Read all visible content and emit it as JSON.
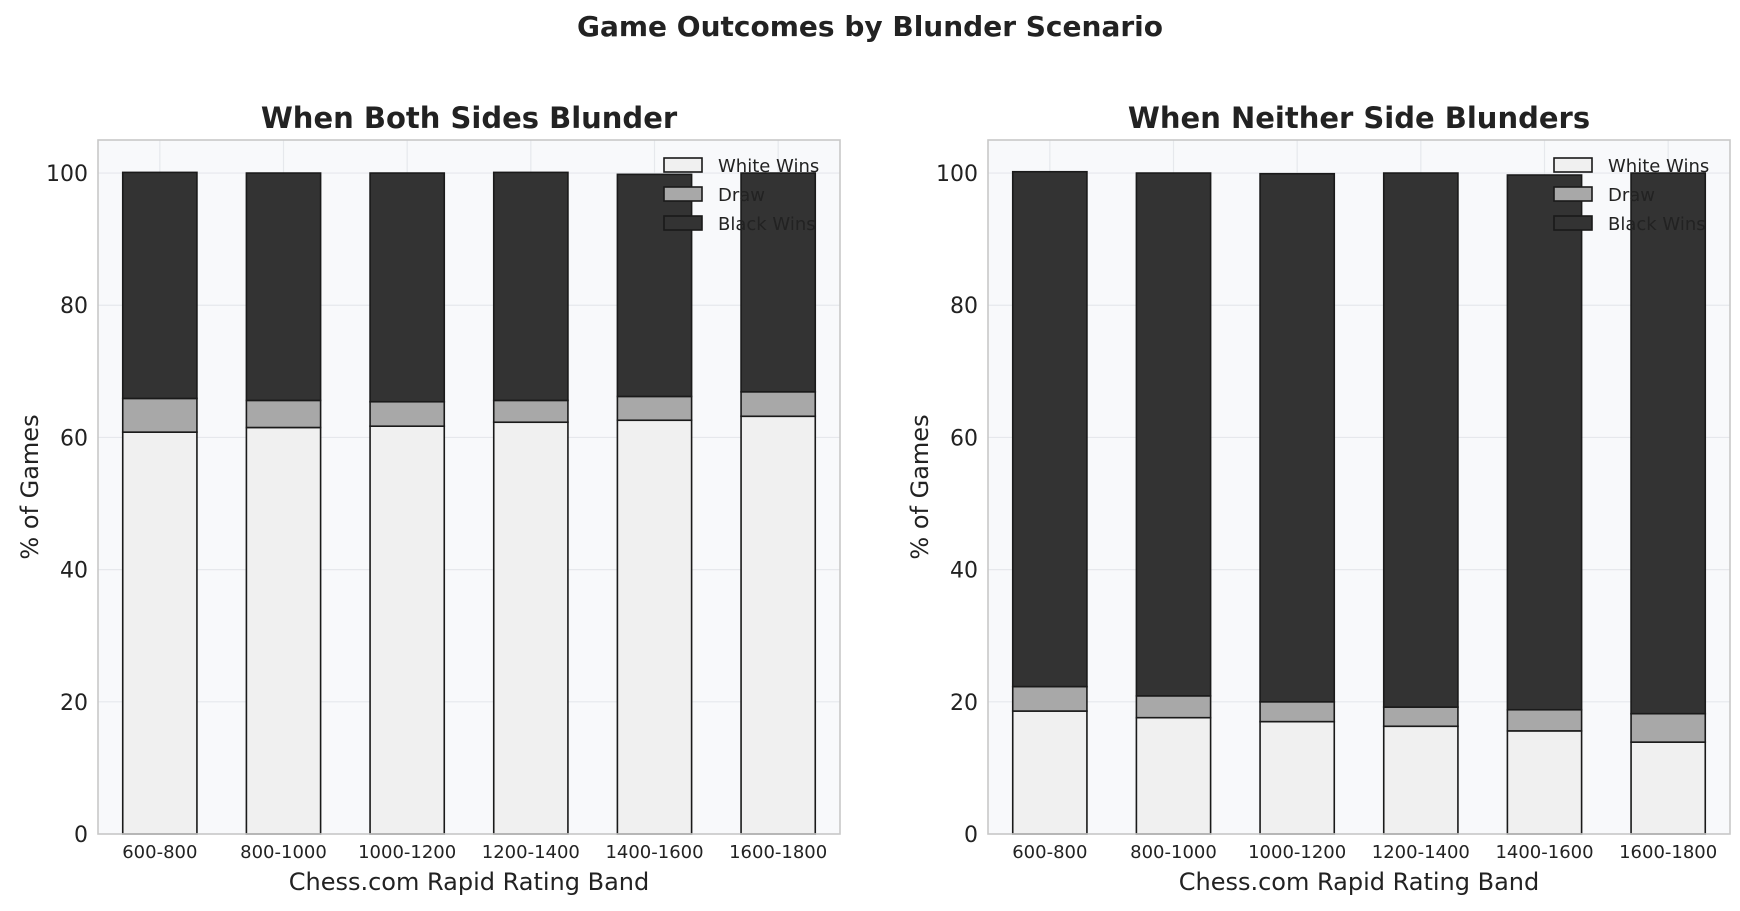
{
  "suptitle": "Game Outcomes by Blunder Scenario",
  "colors": {
    "white_wins": "#f0f0f0",
    "draw": "#a8a8a8",
    "black_wins": "#333333",
    "bar_edge": "#1a1a1a",
    "plot_bg": "#f8f9fb",
    "grid": "#e6e8ec",
    "frame": "#c8c8c8"
  },
  "chart_data": [
    {
      "type": "bar",
      "stacked": true,
      "title": "When Both Sides Blunder",
      "xlabel": "Chess.com Rapid Rating Band",
      "ylabel": "% of Games",
      "ylim": [
        0,
        105
      ],
      "yticks": [
        0,
        20,
        40,
        60,
        80,
        100
      ],
      "grid": true,
      "legend_position": "top-right",
      "categories": [
        "600-800",
        "800-1000",
        "1000-1200",
        "1200-1400",
        "1400-1600",
        "1600-1800"
      ],
      "series": [
        {
          "name": "White Wins",
          "color_key": "white_wins",
          "values": [
            60.8,
            61.5,
            61.7,
            62.3,
            62.6,
            63.2
          ]
        },
        {
          "name": "Draw",
          "color_key": "draw",
          "values": [
            5.1,
            4.1,
            3.7,
            3.3,
            3.6,
            3.7
          ]
        },
        {
          "name": "Black Wins",
          "color_key": "black_wins",
          "values": [
            34.2,
            34.4,
            34.6,
            34.5,
            33.6,
            33.1
          ]
        }
      ]
    },
    {
      "type": "bar",
      "stacked": true,
      "title": "When Neither Side Blunders",
      "xlabel": "Chess.com Rapid Rating Band",
      "ylabel": "% of Games",
      "ylim": [
        0,
        105
      ],
      "yticks": [
        0,
        20,
        40,
        60,
        80,
        100
      ],
      "grid": true,
      "legend_position": "top-right",
      "categories": [
        "600-800",
        "800-1000",
        "1000-1200",
        "1200-1400",
        "1400-1600",
        "1600-1800"
      ],
      "series": [
        {
          "name": "White Wins",
          "color_key": "white_wins",
          "values": [
            18.6,
            17.6,
            17.0,
            16.3,
            15.6,
            13.9
          ]
        },
        {
          "name": "Draw",
          "color_key": "draw",
          "values": [
            3.7,
            3.3,
            3.0,
            2.9,
            3.2,
            4.3
          ]
        },
        {
          "name": "Black Wins",
          "color_key": "black_wins",
          "values": [
            77.9,
            79.1,
            79.9,
            80.8,
            80.9,
            81.8
          ]
        }
      ]
    }
  ]
}
